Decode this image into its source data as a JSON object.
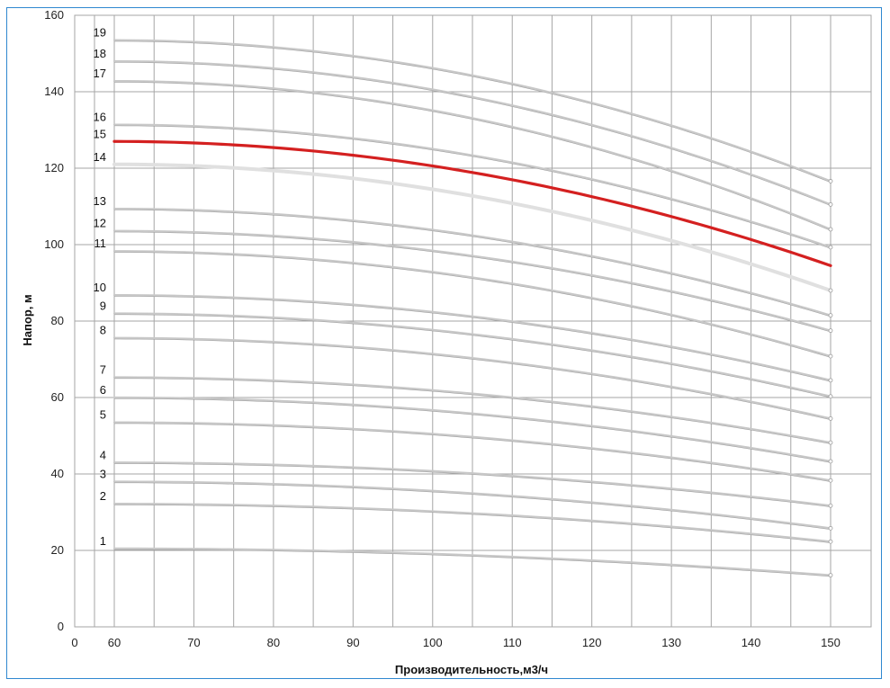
{
  "chart_data": {
    "type": "line",
    "title": "",
    "xlabel": "Производительность,м3/ч",
    "ylabel": "Напор, м",
    "xlim": [
      0,
      150
    ],
    "ylim": [
      0,
      160
    ],
    "x_ticks": [
      0,
      60,
      70,
      80,
      90,
      100,
      110,
      120,
      130,
      140,
      150
    ],
    "y_ticks": [
      0,
      20,
      40,
      60,
      80,
      100,
      120,
      140,
      160
    ],
    "x": [
      60,
      150
    ],
    "grid": true,
    "legend": "none",
    "colors": {
      "default": "#c8c8c8",
      "highlight": "#d42020",
      "curve_14": "#e0e0e0",
      "grid": "#a6a6a6",
      "frame": "#2f88d0"
    },
    "series": [
      {
        "name": "1",
        "values": [
          20.5,
          13.5
        ]
      },
      {
        "name": "2",
        "values": [
          32.2,
          22.3
        ]
      },
      {
        "name": "3",
        "values": [
          38.0,
          25.8
        ]
      },
      {
        "name": "4",
        "values": [
          43.0,
          31.7
        ]
      },
      {
        "name": "5",
        "values": [
          53.5,
          38.3
        ]
      },
      {
        "name": "6",
        "values": [
          60.0,
          43.3
        ]
      },
      {
        "name": "7",
        "values": [
          65.3,
          48.2
        ]
      },
      {
        "name": "8",
        "values": [
          75.6,
          54.5
        ]
      },
      {
        "name": "9",
        "values": [
          82.0,
          60.3
        ]
      },
      {
        "name": "10",
        "values": [
          86.8,
          64.5
        ]
      },
      {
        "name": "11",
        "values": [
          98.3,
          70.8
        ]
      },
      {
        "name": "12",
        "values": [
          103.6,
          77.5
        ]
      },
      {
        "name": "13",
        "values": [
          109.4,
          81.5
        ]
      },
      {
        "name": "14",
        "values": [
          121.0,
          88.0
        ]
      },
      {
        "name": "15",
        "values": [
          127.0,
          94.5
        ]
      },
      {
        "name": "16",
        "values": [
          131.4,
          99.3
        ]
      },
      {
        "name": "17",
        "values": [
          142.8,
          104.0
        ]
      },
      {
        "name": "18",
        "values": [
          148.0,
          110.5
        ]
      },
      {
        "name": "19",
        "values": [
          153.5,
          116.6
        ]
      }
    ],
    "highlighted_series": "15"
  }
}
